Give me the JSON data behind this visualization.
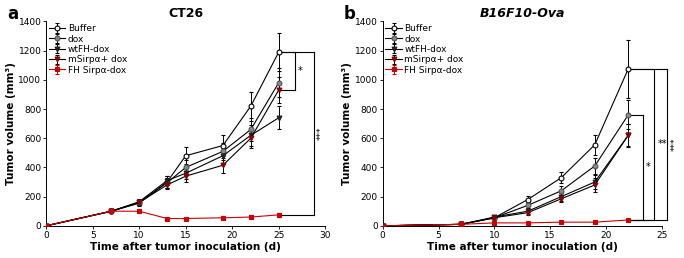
{
  "panel_a": {
    "title": "CT26",
    "xlabel": "Time after tumor inoculation (d)",
    "ylabel": "Tumor volume (mm³)",
    "xlim": [
      0,
      30
    ],
    "ylim": [
      0,
      1400
    ],
    "yticks": [
      0,
      200,
      400,
      600,
      800,
      1000,
      1200,
      1400
    ],
    "xticks": [
      0,
      5,
      10,
      15,
      20,
      25,
      30
    ],
    "series": [
      {
        "label": "Buffer",
        "x": [
          0,
          7,
          10,
          13,
          15,
          19,
          22,
          25
        ],
        "y": [
          0,
          100,
          155,
          300,
          480,
          550,
          820,
          1190
        ],
        "yerr": [
          0,
          10,
          20,
          40,
          60,
          70,
          100,
          130
        ],
        "line_color": "#000000",
        "marker": "o",
        "mfc": "#ffffff",
        "mec": "#000000"
      },
      {
        "label": "dox",
        "x": [
          0,
          7,
          10,
          13,
          15,
          19,
          22,
          25
        ],
        "y": [
          0,
          100,
          160,
          295,
          400,
          510,
          660,
          980
        ],
        "yerr": [
          0,
          12,
          20,
          35,
          50,
          60,
          80,
          100
        ],
        "line_color": "#000000",
        "marker": "o",
        "mfc": "#888888",
        "mec": "#555555"
      },
      {
        "label": "wtFH-dox",
        "x": [
          0,
          7,
          10,
          13,
          15,
          19,
          22,
          25
        ],
        "y": [
          0,
          100,
          165,
          310,
          360,
          480,
          620,
          740
        ],
        "yerr": [
          0,
          10,
          18,
          30,
          40,
          55,
          70,
          80
        ],
        "line_color": "#000000",
        "marker": "v",
        "mfc": "#222222",
        "mec": "#222222"
      },
      {
        "label": "mSirpα+ dox",
        "x": [
          0,
          7,
          10,
          13,
          15,
          19,
          22,
          25
        ],
        "y": [
          0,
          100,
          160,
          280,
          340,
          415,
          600,
          930
        ],
        "yerr": [
          0,
          10,
          18,
          28,
          38,
          50,
          65,
          90
        ],
        "line_color": "#000000",
        "marker": "v",
        "mfc": "#8B0000",
        "mec": "#8B0000"
      },
      {
        "label": "FH Sirpα-dox",
        "x": [
          0,
          7,
          10,
          13,
          15,
          19,
          22,
          25
        ],
        "y": [
          0,
          100,
          100,
          50,
          50,
          55,
          60,
          75
        ],
        "yerr": [
          0,
          15,
          15,
          10,
          8,
          10,
          12,
          15
        ],
        "line_color": "#cc0000",
        "marker": "s",
        "mfc": "#cc0000",
        "mec": "#cc0000"
      }
    ],
    "sig_brackets": [
      {
        "x_last": 25,
        "x_line": 26.8,
        "y_top": 1190,
        "y_bot": 930,
        "label": "*",
        "label_rot": 0
      },
      {
        "x_last": 25,
        "x_line": 28.8,
        "y_top": 1190,
        "y_bot": 75,
        "label": "***",
        "label_rot": 90
      }
    ]
  },
  "panel_b": {
    "title": "B16F10-Ova",
    "xlabel": "Time after tumor inoculation (d)",
    "ylabel": "Tumor volume (mm³)",
    "xlim": [
      0,
      25
    ],
    "ylim": [
      0,
      1400
    ],
    "yticks": [
      0,
      200,
      400,
      600,
      800,
      1000,
      1200,
      1400
    ],
    "xticks": [
      0,
      5,
      10,
      15,
      20,
      25
    ],
    "series": [
      {
        "label": "Buffer",
        "x": [
          0,
          7,
          10,
          13,
          16,
          19,
          22
        ],
        "y": [
          0,
          10,
          55,
          180,
          330,
          555,
          1075
        ],
        "yerr": [
          0,
          5,
          10,
          25,
          40,
          70,
          200
        ],
        "line_color": "#000000",
        "marker": "o",
        "mfc": "#ffffff",
        "mec": "#000000"
      },
      {
        "label": "dox",
        "x": [
          0,
          7,
          10,
          13,
          16,
          19,
          22
        ],
        "y": [
          0,
          10,
          55,
          140,
          240,
          410,
          760
        ],
        "yerr": [
          0,
          5,
          10,
          20,
          35,
          55,
          100
        ],
        "line_color": "#000000",
        "marker": "o",
        "mfc": "#888888",
        "mec": "#555555"
      },
      {
        "label": "wtFH-dox",
        "x": [
          0,
          7,
          10,
          13,
          16,
          19,
          22
        ],
        "y": [
          0,
          10,
          60,
          100,
          200,
          300,
          620
        ],
        "yerr": [
          0,
          5,
          10,
          18,
          28,
          50,
          80
        ],
        "line_color": "#000000",
        "marker": "v",
        "mfc": "#222222",
        "mec": "#222222"
      },
      {
        "label": "mSirpα+ dox",
        "x": [
          0,
          7,
          10,
          13,
          16,
          19,
          22
        ],
        "y": [
          0,
          10,
          55,
          90,
          185,
          280,
          620
        ],
        "yerr": [
          0,
          5,
          8,
          15,
          25,
          45,
          75
        ],
        "line_color": "#000000",
        "marker": "v",
        "mfc": "#8B0000",
        "mec": "#8B0000"
      },
      {
        "label": "FH Sirpα-dox",
        "x": [
          0,
          7,
          10,
          13,
          16,
          19,
          22
        ],
        "y": [
          0,
          10,
          20,
          20,
          25,
          25,
          40
        ],
        "yerr": [
          0,
          5,
          5,
          5,
          5,
          5,
          8
        ],
        "line_color": "#cc0000",
        "marker": "s",
        "mfc": "#cc0000",
        "mec": "#cc0000"
      }
    ],
    "sig_brackets": [
      {
        "x_last": 22,
        "x_line": 23.3,
        "y_top": 760,
        "y_bot": 40,
        "label": "*",
        "label_rot": 0
      },
      {
        "x_last": 22,
        "x_line": 24.3,
        "y_top": 1075,
        "y_bot": 40,
        "label": "**",
        "label_rot": 0
      },
      {
        "x_last": 22,
        "x_line": 25.5,
        "y_top": 1075,
        "y_bot": 40,
        "label": "***",
        "label_rot": 90
      }
    ]
  },
  "background_color": "#ffffff",
  "label_fontsize": 7.5,
  "title_fontsize": 9,
  "tick_fontsize": 6.5,
  "legend_fontsize": 6.5,
  "panel_label_fontsize": 12
}
